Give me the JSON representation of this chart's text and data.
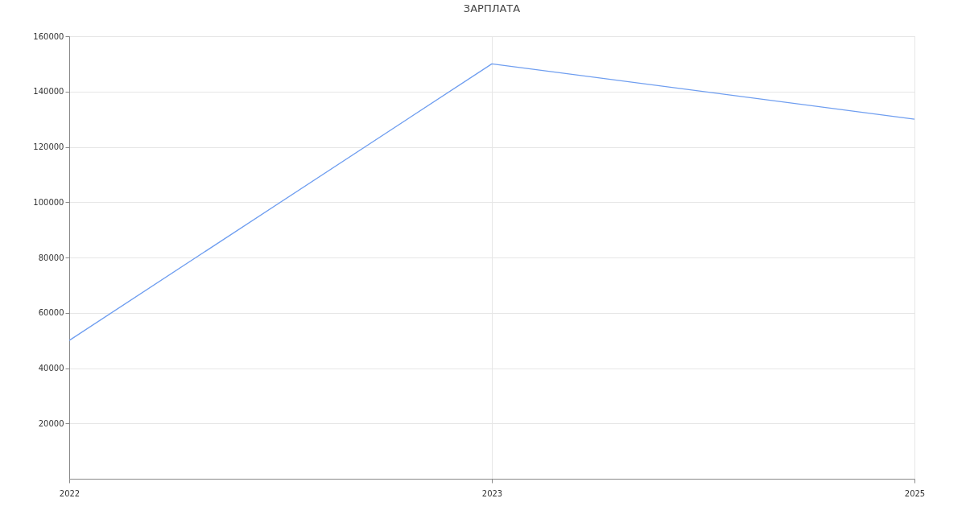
{
  "chart_data": {
    "type": "line",
    "title": "ЗАРПЛАТА",
    "categories": [
      "2022",
      "2023",
      "2025"
    ],
    "series": [
      {
        "color": "#6f9ef0",
        "values": [
          50000,
          150000,
          130000
        ]
      }
    ],
    "ylim": [
      0,
      160000
    ],
    "yticks": [
      20000,
      40000,
      60000,
      80000,
      100000,
      120000,
      140000,
      160000
    ],
    "grid": true,
    "marker": "none"
  }
}
